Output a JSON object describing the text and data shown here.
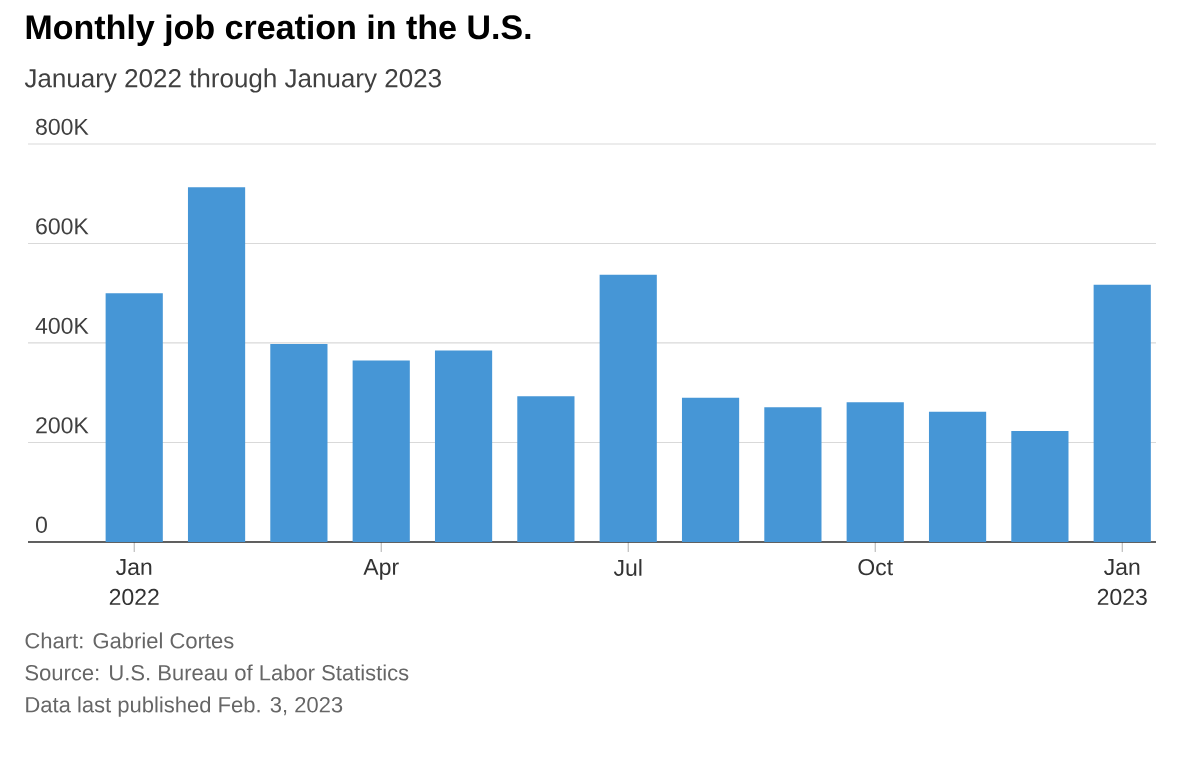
{
  "chart_data": {
    "type": "bar",
    "title": "Monthly job creation in the U.S.",
    "subtitle": "January 2022 through January 2023",
    "categories": [
      "Jan 2022",
      null,
      null,
      "Apr",
      null,
      null,
      "Jul",
      null,
      null,
      "Oct",
      null,
      null,
      "Jan 2023"
    ],
    "values": [
      500000,
      713000,
      398000,
      365000,
      385000,
      293000,
      537000,
      290000,
      271000,
      281000,
      262000,
      223000,
      517000
    ],
    "color": "#4696d6",
    "ylim": [
      0,
      800000
    ],
    "yticks": [
      {
        "value": 0,
        "label": "0"
      },
      {
        "value": 200000,
        "label": "200K"
      },
      {
        "value": 400000,
        "label": "400K"
      },
      {
        "value": 600000,
        "label": "600K"
      },
      {
        "value": 800000,
        "label": "800K"
      }
    ],
    "grid": "y",
    "annotations": [
      "Chart: Gabriel Cortes",
      "Source: U.S. Bureau of Labor Statistics",
      "Data last published Feb. 3, 2023"
    ]
  }
}
